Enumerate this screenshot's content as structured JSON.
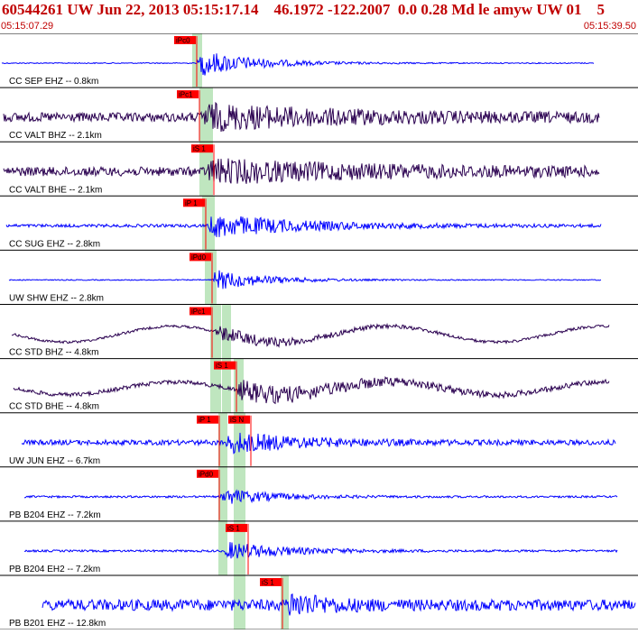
{
  "header": {
    "title": "60544261 UW Jun 22, 2013 05:15:17.14    46.1972 -122.2007  0.0 0.28 Md le amyw UW 01    5",
    "start_time": "05:15:07.29",
    "end_time": "05:15:39.50"
  },
  "colors": {
    "header_text": "#c00000",
    "trace_blue": "#0000ff",
    "trace_dark": "#2a0050",
    "pick_fill": "#ff0000",
    "pick_window": "#bfe6bf",
    "grid_line": "#000000"
  },
  "traces": [
    {
      "label": "CC SEP EHZ -- 0.8km",
      "color": "blue",
      "picks": [
        {
          "label": "iPc0"
        }
      ]
    },
    {
      "label": "CC VALT BHZ -- 2.1km",
      "color": "dark",
      "picks": [
        {
          "label": "iPc1"
        }
      ]
    },
    {
      "label": "CC VALT BHE -- 2.1km",
      "color": "dark",
      "picks": [
        {
          "label": "iS 1"
        }
      ]
    },
    {
      "label": "CC SUG EHZ -- 2.8km",
      "color": "blue",
      "picks": [
        {
          "label": "iP 1"
        }
      ]
    },
    {
      "label": "UW SHW EHZ -- 2.8km",
      "color": "blue",
      "picks": [
        {
          "label": "iPd0"
        }
      ]
    },
    {
      "label": "CC STD BHZ -- 4.8km",
      "color": "dark",
      "picks": [
        {
          "label": "iPc1"
        }
      ]
    },
    {
      "label": "CC STD BHE -- 4.8km",
      "color": "dark",
      "picks": [
        {
          "label": "iS 1"
        }
      ]
    },
    {
      "label": "UW JUN EHZ -- 6.7km",
      "color": "blue",
      "picks": [
        {
          "label": "iP 1"
        },
        {
          "label": "iS N"
        }
      ]
    },
    {
      "label": "PB B204 EHZ -- 7.2km",
      "color": "blue",
      "picks": [
        {
          "label": "iPd0"
        }
      ]
    },
    {
      "label": "PB B204 EH2 -- 7.2km",
      "color": "blue",
      "picks": [
        {
          "label": "iS 1"
        }
      ]
    },
    {
      "label": "PB B201 EHZ -- 12.8km",
      "color": "blue",
      "picks": [
        {
          "label": "iS 1"
        }
      ]
    }
  ]
}
